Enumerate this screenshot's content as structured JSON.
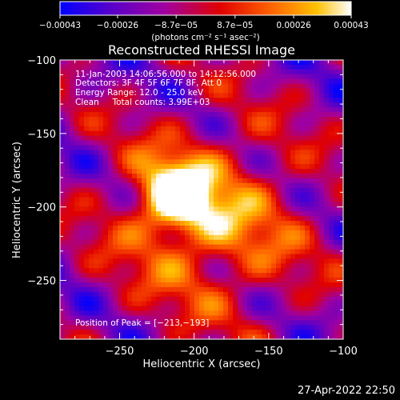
{
  "chart_data": {
    "type": "heatmap",
    "title": "Reconstructed RHESSI Image",
    "xlabel": "Heliocentric X (arcsec)",
    "ylabel": "Heliocentric Y (arcsec)",
    "xlim": [
      -290,
      -100
    ],
    "ylim": [
      -290,
      -100
    ],
    "xticks": [
      -250,
      -200,
      -150,
      -100
    ],
    "xtick_labels": [
      "−250",
      "−200",
      "−150",
      "−100"
    ],
    "yticks": [
      -100,
      -150,
      -200,
      -250
    ],
    "ytick_labels": [
      "−100",
      "−150",
      "−200",
      "−250"
    ],
    "colorbar": {
      "range": [
        -0.00043,
        0.00043
      ],
      "ticks": [
        -0.00043,
        -0.00026,
        -8.7e-05,
        8.7e-05,
        0.00026,
        0.00043
      ],
      "tick_labels": [
        "−0.00043",
        "−0.00026",
        "−8.7e−05",
        "8.7e−05",
        "0.00026",
        "0.00043"
      ],
      "unit_label": "(photons cm⁻² s⁻¹ asec⁻²)",
      "colors": [
        "#0000ff",
        "#5a00c8",
        "#a000a0",
        "#e00000",
        "#ff6000",
        "#ffc000",
        "#ffffff"
      ]
    },
    "annotations": [
      "11-Jan-2003 14:06:56.000 to 14:12:56.000",
      "Detectors: 3F 4F 5F 6F 7F 8F, Att 0",
      "Energy Range: 12.0 - 25.0 keV",
      "Clean     Total counts: 3.99E+03"
    ],
    "peak_label": "Position of Peak = [−213,−193]",
    "peak": [
      -213,
      -193
    ],
    "grid": false
  },
  "timestamp": "27-Apr-2022 22:50"
}
